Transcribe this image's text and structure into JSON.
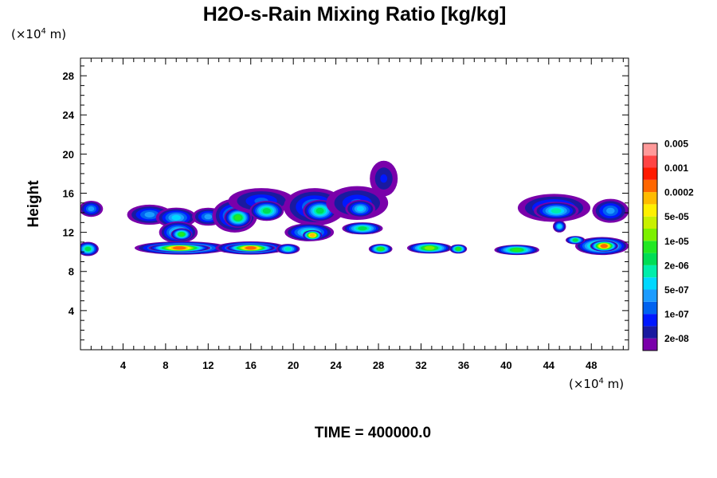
{
  "chart_data": {
    "type": "heatmap",
    "title": "H2O-s-Rain Mixing Ratio [kg/kg]",
    "ylabel": "Height",
    "xlabel": "",
    "y_unit": {
      "prefix": "(×10",
      "exponent": "4",
      "suffix": " m)"
    },
    "x_unit": {
      "prefix": "(×10",
      "exponent": "4",
      "suffix": " m)"
    },
    "xlim": [
      0,
      51.5
    ],
    "ylim": [
      0,
      29.8
    ],
    "x_ticks": [
      4,
      8,
      12,
      16,
      20,
      24,
      28,
      32,
      36,
      40,
      44,
      48
    ],
    "y_ticks": [
      4,
      8,
      12,
      16,
      20,
      24,
      28
    ],
    "time_label": "TIME = 400000.0",
    "colorbar": {
      "colors": [
        "#7a00aa",
        "#1a1aa0",
        "#0018ff",
        "#0062f0",
        "#1c9cff",
        "#00d8ff",
        "#00eeaa",
        "#00dd55",
        "#22e822",
        "#7cf000",
        "#c8f000",
        "#fff000",
        "#ffbb00",
        "#ff6600",
        "#ff1a00",
        "#ff4444",
        "#ff9999"
      ],
      "labels": [
        {
          "after_level": 1,
          "text": "2e-08"
        },
        {
          "after_level": 3,
          "text": "1e-07"
        },
        {
          "after_level": 5,
          "text": "5e-07"
        },
        {
          "after_level": 7,
          "text": "2e-06"
        },
        {
          "after_level": 9,
          "text": "1e-05"
        },
        {
          "after_level": 11,
          "text": "5e-05"
        },
        {
          "after_level": 13,
          "text": "0.0002"
        },
        {
          "after_level": 15,
          "text": "0.001"
        },
        {
          "after_level": 17,
          "text": "0.005"
        }
      ]
    },
    "cells": [
      {
        "x": 1.0,
        "y": 14.4,
        "rx": 1.0,
        "ry": 0.7,
        "level": 4
      },
      {
        "x": 6.5,
        "y": 13.8,
        "rx": 2.0,
        "ry": 0.9,
        "level": 4
      },
      {
        "x": 9.0,
        "y": 13.5,
        "rx": 1.8,
        "ry": 0.9,
        "level": 5
      },
      {
        "x": 9.2,
        "y": 12.0,
        "rx": 1.7,
        "ry": 1.0,
        "level": 6
      },
      {
        "x": 9.5,
        "y": 11.8,
        "rx": 0.9,
        "ry": 0.5,
        "level": 8
      },
      {
        "x": 12.0,
        "y": 13.6,
        "rx": 1.4,
        "ry": 0.8,
        "level": 4
      },
      {
        "x": 14.5,
        "y": 13.7,
        "rx": 2.0,
        "ry": 1.6,
        "level": 5
      },
      {
        "x": 14.8,
        "y": 13.5,
        "rx": 1.2,
        "ry": 0.9,
        "level": 8
      },
      {
        "x": 17.0,
        "y": 15.2,
        "rx": 3.0,
        "ry": 1.2,
        "level": 3
      },
      {
        "x": 17.5,
        "y": 14.2,
        "rx": 1.5,
        "ry": 0.9,
        "level": 7
      },
      {
        "x": 22.0,
        "y": 14.6,
        "rx": 2.8,
        "ry": 1.8,
        "level": 4
      },
      {
        "x": 22.5,
        "y": 14.2,
        "rx": 1.5,
        "ry": 1.0,
        "level": 7
      },
      {
        "x": 26.0,
        "y": 15.0,
        "rx": 2.8,
        "ry": 1.6,
        "level": 3
      },
      {
        "x": 26.3,
        "y": 14.4,
        "rx": 1.3,
        "ry": 0.8,
        "level": 5
      },
      {
        "x": 28.5,
        "y": 17.5,
        "rx": 1.2,
        "ry": 1.7,
        "level": 2
      },
      {
        "x": 21.5,
        "y": 12.0,
        "rx": 2.2,
        "ry": 0.8,
        "level": 6
      },
      {
        "x": 21.8,
        "y": 11.7,
        "rx": 0.8,
        "ry": 0.4,
        "level": 12
      },
      {
        "x": 26.5,
        "y": 12.4,
        "rx": 1.8,
        "ry": 0.5,
        "level": 7
      },
      {
        "x": 44.5,
        "y": 14.5,
        "rx": 3.3,
        "ry": 1.3,
        "level": 4
      },
      {
        "x": 44.7,
        "y": 14.2,
        "rx": 2.0,
        "ry": 0.8,
        "level": 6
      },
      {
        "x": 45.0,
        "y": 12.6,
        "rx": 0.5,
        "ry": 0.5,
        "level": 5
      },
      {
        "x": 49.8,
        "y": 14.2,
        "rx": 1.6,
        "ry": 1.1,
        "level": 4
      },
      {
        "x": 0.7,
        "y": 10.3,
        "rx": 0.9,
        "ry": 0.6,
        "level": 7
      },
      {
        "x": 9.5,
        "y": 10.4,
        "rx": 4.3,
        "ry": 0.55,
        "level": 9
      },
      {
        "x": 9.3,
        "y": 10.4,
        "rx": 2.8,
        "ry": 0.3,
        "level": 13
      },
      {
        "x": 16.0,
        "y": 10.4,
        "rx": 3.2,
        "ry": 0.55,
        "level": 9
      },
      {
        "x": 16.0,
        "y": 10.4,
        "rx": 2.2,
        "ry": 0.3,
        "level": 13
      },
      {
        "x": 19.5,
        "y": 10.3,
        "rx": 1.0,
        "ry": 0.4,
        "level": 6
      },
      {
        "x": 28.2,
        "y": 10.3,
        "rx": 1.0,
        "ry": 0.4,
        "level": 8
      },
      {
        "x": 32.8,
        "y": 10.4,
        "rx": 2.0,
        "ry": 0.45,
        "level": 9
      },
      {
        "x": 35.5,
        "y": 10.3,
        "rx": 0.7,
        "ry": 0.35,
        "level": 8
      },
      {
        "x": 41.0,
        "y": 10.2,
        "rx": 2.0,
        "ry": 0.4,
        "level": 8
      },
      {
        "x": 49.0,
        "y": 10.6,
        "rx": 2.4,
        "ry": 0.8,
        "level": 9
      },
      {
        "x": 49.2,
        "y": 10.6,
        "rx": 1.2,
        "ry": 0.45,
        "level": 13
      },
      {
        "x": 46.5,
        "y": 11.2,
        "rx": 0.8,
        "ry": 0.3,
        "level": 7
      }
    ]
  }
}
